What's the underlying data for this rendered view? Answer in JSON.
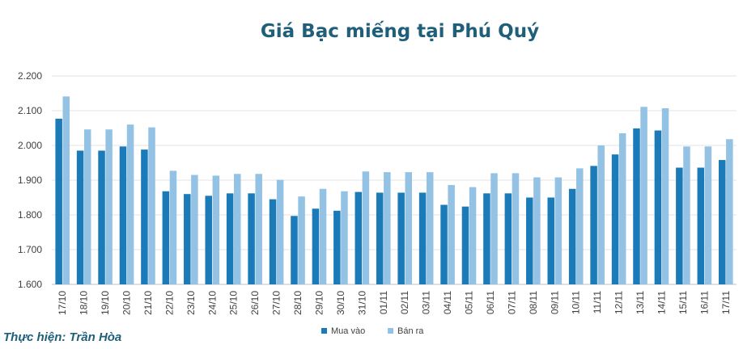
{
  "chart_data": {
    "type": "bar",
    "title": "Giá Bạc miếng tại Phú Quý",
    "credit": "Thực hiện: Trần Hòa",
    "categories": [
      "17/10",
      "18/10",
      "19/10",
      "20/10",
      "21/10",
      "22/10",
      "23/10",
      "24/10",
      "25/10",
      "26/10",
      "27/10",
      "28/10",
      "29/10",
      "30/10",
      "31/10",
      "01/11",
      "02/11",
      "03/11",
      "04/11",
      "05/11",
      "06/11",
      "07/11",
      "08/11",
      "09/11",
      "10/11",
      "11/11",
      "12/11",
      "13/11",
      "14/11",
      "15/11",
      "16/11",
      "17/11"
    ],
    "series": [
      {
        "name": "Mua vào",
        "color": "#1a7bb8",
        "values": [
          2.077,
          1.985,
          1.985,
          1.997,
          1.988,
          1.868,
          1.86,
          1.855,
          1.862,
          1.862,
          1.845,
          1.797,
          1.818,
          1.812,
          1.866,
          1.864,
          1.864,
          1.864,
          1.829,
          1.824,
          1.862,
          1.862,
          1.85,
          1.85,
          1.875,
          1.941,
          1.974,
          2.049,
          2.043,
          1.936,
          1.936,
          1.958
        ]
      },
      {
        "name": "Bán ra",
        "color": "#93c2e4",
        "values": [
          2.141,
          2.046,
          2.046,
          2.06,
          2.052,
          1.927,
          1.915,
          1.913,
          1.918,
          1.918,
          1.901,
          1.853,
          1.875,
          1.868,
          1.925,
          1.923,
          1.923,
          1.923,
          1.886,
          1.88,
          1.92,
          1.92,
          1.908,
          1.908,
          1.934,
          2.0,
          2.035,
          2.111,
          2.107,
          1.997,
          1.997,
          2.018
        ]
      }
    ],
    "y_ticks": [
      "1.600",
      "1.700",
      "1.800",
      "1.900",
      "2.000",
      "2.100",
      "2.200"
    ],
    "ylim": [
      1.6,
      2.2
    ],
    "grid": true,
    "legend": "bottom"
  }
}
